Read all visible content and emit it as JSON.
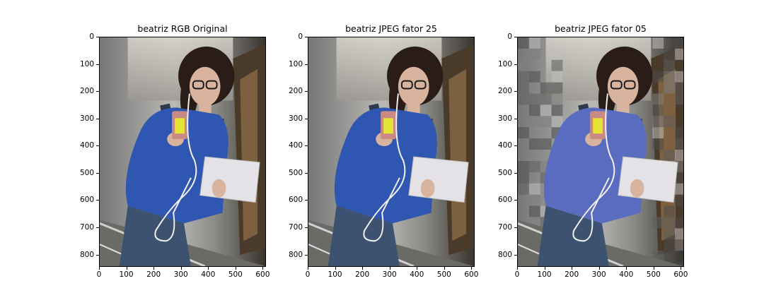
{
  "figure": {
    "panels": [
      {
        "title": "beatriz RGB Original",
        "variant": "original"
      },
      {
        "title": "beatriz JPEG fator 25",
        "variant": "q25"
      },
      {
        "title": "beatriz JPEG fator 05",
        "variant": "q05"
      }
    ],
    "y_ticks": [
      "0",
      "100",
      "200",
      "300",
      "400",
      "500",
      "600",
      "700",
      "800"
    ],
    "x_ticks": [
      "0",
      "100",
      "200",
      "300",
      "400",
      "500",
      "600"
    ],
    "image_extent": {
      "width": 612,
      "height": 845
    },
    "colors": {
      "shirt": "#2f56b0",
      "hair": "#2a1c16",
      "skin": "#d8b49f",
      "elevator_wall": "#8a8a86",
      "phone_case": "#c98a86",
      "phone_screen": "#e5e334",
      "notebook": "#e4e2e6",
      "cable": "#f1f1f1"
    }
  }
}
